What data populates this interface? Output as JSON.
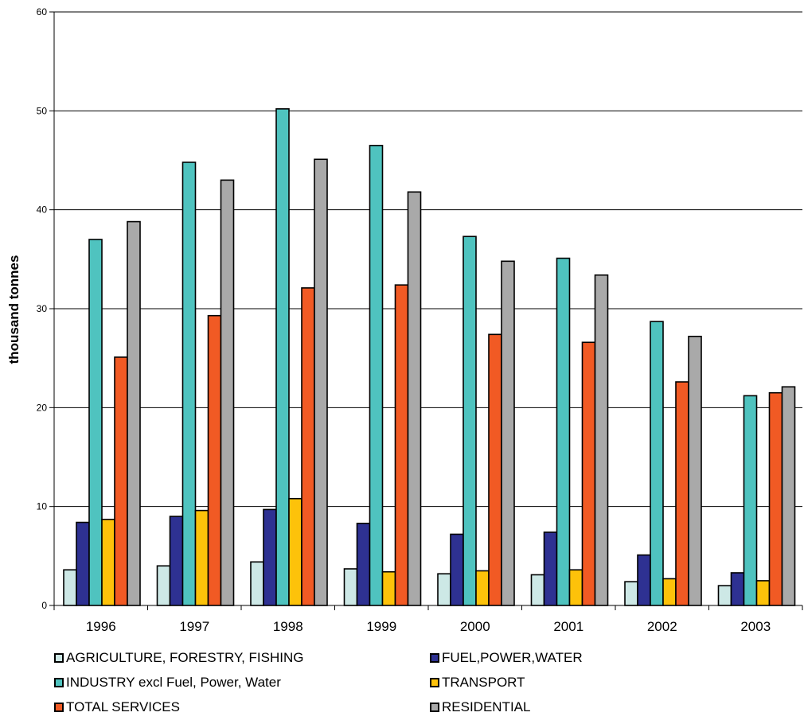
{
  "chart_data": {
    "type": "bar",
    "categories": [
      "1996",
      "1997",
      "1998",
      "1999",
      "2000",
      "2001",
      "2002",
      "2003"
    ],
    "series": [
      {
        "name": "AGRICULTURE, FORESTRY, FISHING",
        "color": "#cde8e6",
        "values": [
          3.6,
          4.0,
          4.4,
          3.7,
          3.2,
          3.1,
          2.4,
          2.0
        ]
      },
      {
        "name": "FUEL,POWER,WATER",
        "color": "#2e3192",
        "values": [
          8.4,
          9.0,
          9.7,
          8.3,
          7.2,
          7.4,
          5.1,
          3.3
        ]
      },
      {
        "name": "INDUSTRY excl Fuel, Power, Water",
        "color": "#4fc3bf",
        "values": [
          37.0,
          44.8,
          50.2,
          46.5,
          37.3,
          35.1,
          28.7,
          21.2
        ]
      },
      {
        "name": "TRANSPORT",
        "color": "#fdc20a",
        "values": [
          8.7,
          9.6,
          10.8,
          3.4,
          3.5,
          3.6,
          2.7,
          2.5
        ]
      },
      {
        "name": "TOTAL SERVICES",
        "color": "#f15a24",
        "values": [
          25.1,
          29.3,
          32.1,
          32.4,
          27.4,
          26.6,
          22.6,
          21.5
        ]
      },
      {
        "name": "RESIDENTIAL",
        "color": "#a9a9a9",
        "values": [
          38.8,
          43.0,
          45.1,
          41.8,
          34.8,
          33.4,
          27.2,
          22.1
        ]
      }
    ],
    "title": "",
    "xlabel": "",
    "ylabel": "thousand tonnes",
    "ylim": [
      0,
      60
    ],
    "yticks": [
      0,
      10,
      20,
      30,
      40,
      50,
      60
    ],
    "grid": true,
    "legend_position": "bottom"
  }
}
